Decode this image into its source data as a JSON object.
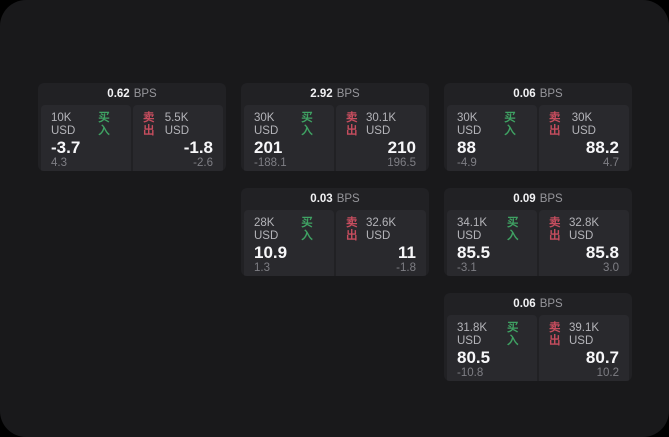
{
  "labels": {
    "bps_unit": "BPS",
    "buy": "买入",
    "sell": "卖出"
  },
  "colors": {
    "background": "#000000",
    "panel": "#19191b",
    "card": "#212124",
    "pane": "#29292d",
    "buy_green": "#3fa263",
    "sell_red": "#c64d5e",
    "value_white": "#f7f7f9",
    "muted_gray": "#7e7e84"
  },
  "cards": [
    {
      "bps": "0.62",
      "buy": {
        "amount": "10K USD",
        "value": "-3.7",
        "delta": "4.3"
      },
      "sell": {
        "amount": "5.5K USD",
        "value": "-1.8",
        "delta": "-2.6"
      }
    },
    {
      "bps": "2.92",
      "buy": {
        "amount": "30K USD",
        "value": "201",
        "delta": "-188.1"
      },
      "sell": {
        "amount": "30.1K USD",
        "value": "210",
        "delta": "196.5"
      }
    },
    {
      "bps": "0.06",
      "buy": {
        "amount": "30K USD",
        "value": "88",
        "delta": "-4.9"
      },
      "sell": {
        "amount": "30K USD",
        "value": "88.2",
        "delta": "4.7"
      }
    },
    {
      "bps": "0.03",
      "buy": {
        "amount": "28K USD",
        "value": "10.9",
        "delta": "1.3"
      },
      "sell": {
        "amount": "32.6K USD",
        "value": "11",
        "delta": "-1.8"
      }
    },
    {
      "bps": "0.09",
      "buy": {
        "amount": "34.1K USD",
        "value": "85.5",
        "delta": "-3.1"
      },
      "sell": {
        "amount": "32.8K USD",
        "value": "85.8",
        "delta": "3.0"
      }
    },
    {
      "bps": "0.06",
      "buy": {
        "amount": "31.8K USD",
        "value": "80.5",
        "delta": "-10.8"
      },
      "sell": {
        "amount": "39.1K USD",
        "value": "80.7",
        "delta": "10.2"
      }
    }
  ]
}
